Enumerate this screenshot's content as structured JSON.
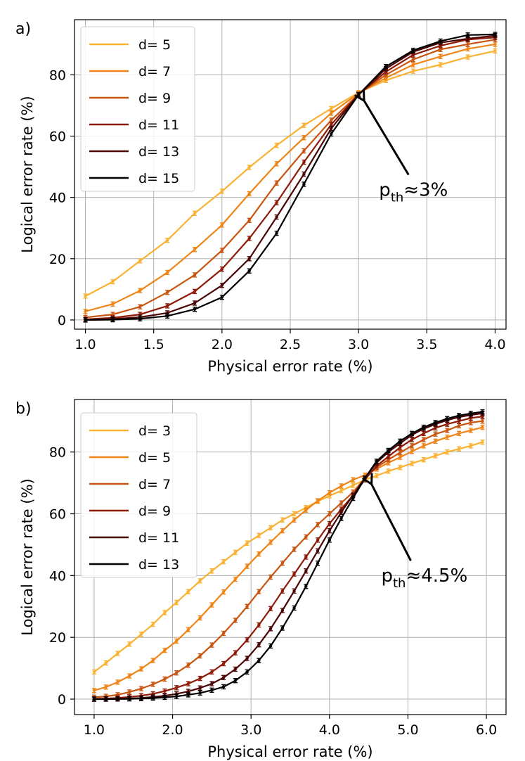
{
  "chart_data": [
    {
      "type": "line",
      "panel_label": "a)",
      "xlabel": "Physical error rate (%)",
      "ylabel": "Logical error rate (%)",
      "xlim": [
        0.92,
        4.08
      ],
      "ylim": [
        -3,
        98
      ],
      "xticks": [
        1.0,
        1.5,
        2.0,
        2.5,
        3.0,
        3.5,
        4.0
      ],
      "xtick_labels": [
        "1.0",
        "1.5",
        "2.0",
        "2.5",
        "3.0",
        "3.5",
        "4.0"
      ],
      "yticks": [
        0,
        20,
        40,
        60,
        80
      ],
      "ytick_labels": [
        "0",
        "20",
        "40",
        "60",
        "80"
      ],
      "grid": true,
      "legend_position": "upper-left",
      "x": [
        1.0,
        1.2,
        1.4,
        1.6,
        1.8,
        2.0,
        2.2,
        2.4,
        2.6,
        2.8,
        3.0,
        3.2,
        3.4,
        3.6,
        3.8,
        4.0
      ],
      "series": [
        {
          "name": "d= 5",
          "color": "#f9b233",
          "values": [
            7.8,
            12.5,
            19.3,
            26.0,
            34.8,
            42.0,
            49.8,
            57.0,
            63.5,
            69.0,
            74.2,
            78.2,
            81.2,
            83.3,
            85.8,
            87.8
          ]
        },
        {
          "name": "d= 7",
          "color": "#ef8518",
          "values": [
            2.8,
            5.2,
            9.6,
            15.5,
            23.0,
            31.0,
            41.2,
            51.0,
            59.5,
            67.5,
            74.0,
            79.0,
            83.3,
            86.0,
            88.5,
            90.0
          ]
        },
        {
          "name": "d= 9",
          "color": "#c85510",
          "values": [
            0.8,
            1.8,
            4.3,
            9.0,
            14.7,
            22.7,
            32.5,
            44.7,
            55.2,
            65.2,
            73.7,
            80.0,
            85.0,
            88.3,
            90.0,
            91.5
          ]
        },
        {
          "name": "d= 11",
          "color": "#8e1a08",
          "values": [
            0.2,
            0.7,
            1.8,
            4.6,
            9.3,
            16.6,
            26.6,
            38.3,
            51.5,
            63.8,
            73.6,
            81.0,
            86.5,
            89.5,
            91.5,
            92.2
          ]
        },
        {
          "name": "d= 13",
          "color": "#4a0505",
          "values": [
            0.05,
            0.3,
            0.9,
            2.3,
            5.5,
            11.3,
            20.0,
            33.6,
            47.6,
            62.5,
            73.5,
            82.0,
            87.5,
            90.5,
            91.8,
            92.8
          ]
        },
        {
          "name": "d= 15",
          "color": "#000000",
          "values": [
            0.0,
            0.1,
            0.4,
            1.3,
            3.5,
            7.4,
            16.0,
            28.3,
            44.3,
            60.7,
            73.5,
            82.7,
            88.0,
            91.0,
            93.0,
            93.2
          ]
        }
      ],
      "annotation": {
        "prefix": "p",
        "subscript": "th",
        "suffix": "≈3%",
        "arrow_target": [
          3.02,
          72.5
        ],
        "text_anchor": [
          3.15,
          40.5
        ]
      }
    },
    {
      "type": "line",
      "panel_label": "b)",
      "xlabel": "Physical error rate (%)",
      "ylabel": "Logical error rate (%)",
      "xlim": [
        0.75,
        6.25
      ],
      "ylim": [
        -5,
        97
      ],
      "xticks": [
        1.0,
        2.0,
        3.0,
        4.0,
        5.0,
        6.0
      ],
      "xtick_labels": [
        "1.0",
        "2.0",
        "3.0",
        "4.0",
        "5.0",
        "6.0"
      ],
      "yticks": [
        0,
        20,
        40,
        60,
        80
      ],
      "ytick_labels": [
        "0",
        "20",
        "40",
        "60",
        "80"
      ],
      "grid": true,
      "legend_position": "upper-left",
      "x": [
        1.0,
        1.15,
        1.3,
        1.45,
        1.6,
        1.75,
        1.9,
        2.05,
        2.2,
        2.35,
        2.5,
        2.65,
        2.8,
        2.95,
        3.1,
        3.25,
        3.4,
        3.55,
        3.7,
        3.85,
        4.0,
        4.15,
        4.3,
        4.45,
        4.6,
        4.75,
        4.9,
        5.05,
        5.2,
        5.35,
        5.5,
        5.65,
        5.8,
        5.95
      ],
      "series": [
        {
          "name": "d= 3",
          "color": "#f9b233",
          "values": [
            8.8,
            11.7,
            14.8,
            17.8,
            21.0,
            24.2,
            28.0,
            31.3,
            34.8,
            38.3,
            41.5,
            44.5,
            47.5,
            50.5,
            53.0,
            55.5,
            58.0,
            60.0,
            62.0,
            64.0,
            65.8,
            67.5,
            69.2,
            71.0,
            72.3,
            73.8,
            75.0,
            76.3,
            77.5,
            78.8,
            80.0,
            81.0,
            82.0,
            83.2
          ]
        },
        {
          "name": "d= 5",
          "color": "#ef8518",
          "values": [
            2.8,
            3.9,
            5.5,
            7.5,
            9.8,
            12.5,
            15.8,
            18.8,
            22.5,
            26.3,
            30.5,
            34.7,
            38.8,
            43.0,
            47.0,
            50.8,
            54.5,
            58.0,
            61.2,
            64.2,
            66.8,
            69.0,
            71.0,
            72.5,
            74.5,
            76.5,
            78.3,
            80.2,
            82.0,
            83.5,
            84.8,
            86.0,
            87.0,
            88.0
          ]
        },
        {
          "name": "d= 7",
          "color": "#c85510",
          "values": [
            0.6,
            0.9,
            1.4,
            2.3,
            3.4,
            4.8,
            6.5,
            8.5,
            11.0,
            14.0,
            17.5,
            21.3,
            25.5,
            30.0,
            34.8,
            39.5,
            44.0,
            48.5,
            52.5,
            56.5,
            60.0,
            63.5,
            67.0,
            71.5,
            75.0,
            77.5,
            79.8,
            82.0,
            84.0,
            85.8,
            87.0,
            88.5,
            89.5,
            90.0
          ]
        },
        {
          "name": "d= 9",
          "color": "#8e1a08",
          "values": [
            0.1,
            0.2,
            0.4,
            0.7,
            1.1,
            1.7,
            2.6,
            3.7,
            5.0,
            6.7,
            8.8,
            11.5,
            15.0,
            19.2,
            24.0,
            29.3,
            35.0,
            40.5,
            46.0,
            51.5,
            56.8,
            61.5,
            66.0,
            71.0,
            75.5,
            78.5,
            81.5,
            84.0,
            86.0,
            87.8,
            89.0,
            90.0,
            91.0,
            91.5
          ]
        },
        {
          "name": "d= 11",
          "color": "#4a0505",
          "values": [
            0.0,
            0.05,
            0.1,
            0.2,
            0.4,
            0.7,
            1.1,
            1.7,
            2.5,
            3.6,
            5.0,
            7.0,
            9.7,
            13.2,
            17.6,
            22.8,
            28.7,
            35.0,
            41.5,
            48.0,
            54.5,
            60.5,
            66.0,
            71.5,
            76.5,
            80.0,
            82.8,
            85.5,
            87.5,
            89.0,
            90.3,
            91.3,
            92.0,
            92.5
          ]
        },
        {
          "name": "d= 13",
          "color": "#000000",
          "values": [
            0.0,
            0.0,
            0.05,
            0.1,
            0.2,
            0.35,
            0.6,
            0.9,
            1.4,
            2.0,
            2.9,
            4.0,
            6.0,
            8.8,
            12.5,
            17.2,
            23.0,
            29.5,
            36.5,
            44.0,
            51.5,
            58.5,
            65.0,
            71.5,
            77.0,
            80.5,
            83.5,
            86.0,
            88.0,
            89.5,
            90.8,
            91.8,
            92.5,
            93.0
          ]
        }
      ],
      "annotation": {
        "prefix": "p",
        "subscript": "th",
        "suffix": "≈4.5%",
        "arrow_target": [
          4.5,
          70.5
        ],
        "text_anchor": [
          4.66,
          38.0
        ]
      }
    }
  ]
}
